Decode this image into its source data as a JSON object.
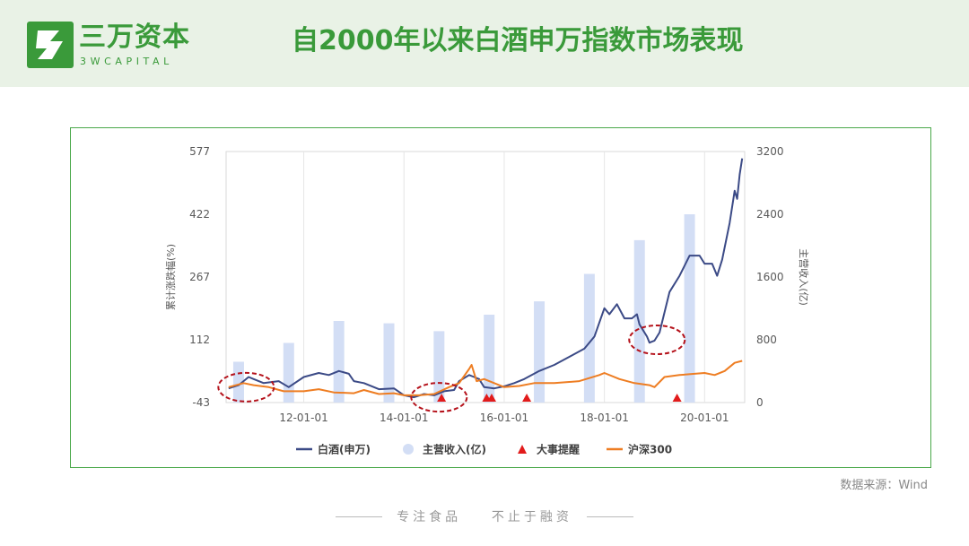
{
  "brand": {
    "name_cn": "三万资本",
    "name_en": "3WCAPITAL"
  },
  "title": "自2000年以来白酒申万指数市场表现",
  "source": "数据来源：Wind",
  "footer": {
    "left": "专注食品",
    "right": "不止于融资"
  },
  "colors": {
    "brand": "#3a9a3a",
    "baijiu": "#3b4a86",
    "hs300": "#ee7d22",
    "revenue": "#d3def5",
    "event": "#e21b1b",
    "highlight": "#b5121b"
  },
  "chart_data": {
    "type": "line",
    "ylabel_left": "累计涨跌幅(%)",
    "ylabel_right": "主营收入(亿)",
    "yticks_left": [
      "577",
      "422",
      "267",
      "112",
      "-43"
    ],
    "yticks_right": [
      "3200",
      "2400",
      "1600",
      "800",
      "0"
    ],
    "ylim_left": [
      -43,
      577
    ],
    "ylim_right": [
      0,
      3200
    ],
    "x_ticks": [
      "12-01-01",
      "14-01-01",
      "16-01-01",
      "18-01-01",
      "20-01-01"
    ],
    "x_tick_years": [
      2012,
      2014,
      2016,
      2018,
      2020
    ],
    "xlim": [
      2010.45,
      2020.8
    ],
    "grid": "vertical",
    "legend_position": "bottom",
    "legend": [
      "白酒(申万)",
      "主营收入(亿)",
      "大事提醒",
      "沪深300"
    ],
    "series": [
      {
        "name": "白酒(申万)",
        "kind": "line",
        "points": [
          [
            2010.5,
            -8
          ],
          [
            2010.7,
            0
          ],
          [
            2010.9,
            20
          ],
          [
            2011.0,
            15
          ],
          [
            2011.2,
            5
          ],
          [
            2011.5,
            10
          ],
          [
            2011.7,
            -5
          ],
          [
            2012.0,
            20
          ],
          [
            2012.3,
            30
          ],
          [
            2012.5,
            25
          ],
          [
            2012.7,
            35
          ],
          [
            2012.9,
            28
          ],
          [
            2013.0,
            10
          ],
          [
            2013.2,
            5
          ],
          [
            2013.5,
            -10
          ],
          [
            2013.8,
            -8
          ],
          [
            2014.0,
            -25
          ],
          [
            2014.2,
            -30
          ],
          [
            2014.4,
            -22
          ],
          [
            2014.6,
            -25
          ],
          [
            2014.8,
            -15
          ],
          [
            2015.0,
            -12
          ],
          [
            2015.1,
            10
          ],
          [
            2015.3,
            25
          ],
          [
            2015.4,
            20
          ],
          [
            2015.5,
            15
          ],
          [
            2015.6,
            -5
          ],
          [
            2015.8,
            -8
          ],
          [
            2016.0,
            -3
          ],
          [
            2016.2,
            5
          ],
          [
            2016.4,
            15
          ],
          [
            2016.7,
            35
          ],
          [
            2017.0,
            50
          ],
          [
            2017.3,
            70
          ],
          [
            2017.6,
            90
          ],
          [
            2017.8,
            120
          ],
          [
            2018.0,
            190
          ],
          [
            2018.1,
            175
          ],
          [
            2018.25,
            200
          ],
          [
            2018.4,
            165
          ],
          [
            2018.55,
            165
          ],
          [
            2018.65,
            175
          ],
          [
            2018.7,
            150
          ],
          [
            2018.85,
            120
          ],
          [
            2018.9,
            105
          ],
          [
            2019.0,
            110
          ],
          [
            2019.1,
            130
          ],
          [
            2019.3,
            230
          ],
          [
            2019.5,
            270
          ],
          [
            2019.7,
            320
          ],
          [
            2019.9,
            320
          ],
          [
            2020.0,
            300
          ],
          [
            2020.15,
            300
          ],
          [
            2020.25,
            270
          ],
          [
            2020.35,
            310
          ],
          [
            2020.5,
            400
          ],
          [
            2020.6,
            480
          ],
          [
            2020.65,
            460
          ],
          [
            2020.7,
            520
          ],
          [
            2020.75,
            560
          ]
        ]
      },
      {
        "name": "沪深300",
        "kind": "line",
        "points": [
          [
            2010.5,
            -5
          ],
          [
            2010.8,
            5
          ],
          [
            2011.0,
            0
          ],
          [
            2011.3,
            -5
          ],
          [
            2011.6,
            -15
          ],
          [
            2012.0,
            -15
          ],
          [
            2012.3,
            -10
          ],
          [
            2012.6,
            -18
          ],
          [
            2013.0,
            -20
          ],
          [
            2013.2,
            -12
          ],
          [
            2013.5,
            -22
          ],
          [
            2013.8,
            -20
          ],
          [
            2014.0,
            -25
          ],
          [
            2014.3,
            -25
          ],
          [
            2014.6,
            -22
          ],
          [
            2014.9,
            -5
          ],
          [
            2015.1,
            5
          ],
          [
            2015.3,
            40
          ],
          [
            2015.35,
            50
          ],
          [
            2015.45,
            10
          ],
          [
            2015.6,
            15
          ],
          [
            2015.8,
            5
          ],
          [
            2016.0,
            -5
          ],
          [
            2016.3,
            -2
          ],
          [
            2016.6,
            5
          ],
          [
            2017.0,
            5
          ],
          [
            2017.5,
            10
          ],
          [
            2017.9,
            25
          ],
          [
            2018.0,
            30
          ],
          [
            2018.3,
            15
          ],
          [
            2018.6,
            5
          ],
          [
            2018.9,
            0
          ],
          [
            2019.0,
            -5
          ],
          [
            2019.2,
            20
          ],
          [
            2019.5,
            25
          ],
          [
            2019.8,
            28
          ],
          [
            2020.0,
            30
          ],
          [
            2020.2,
            25
          ],
          [
            2020.4,
            35
          ],
          [
            2020.6,
            55
          ],
          [
            2020.75,
            60
          ]
        ]
      },
      {
        "name": "主营收入(亿)",
        "kind": "bar",
        "points": [
          [
            2010.7,
            520
          ],
          [
            2011.7,
            760
          ],
          [
            2012.7,
            1040
          ],
          [
            2013.7,
            1010
          ],
          [
            2014.7,
            910
          ],
          [
            2015.7,
            1120
          ],
          [
            2016.7,
            1290
          ],
          [
            2017.7,
            1640
          ],
          [
            2018.7,
            2070
          ],
          [
            2019.7,
            2400
          ]
        ]
      },
      {
        "name": "大事提醒",
        "kind": "marker",
        "points": [
          2014.75,
          2015.65,
          2015.75,
          2016.45,
          2019.45
        ]
      }
    ],
    "annotations": [
      {
        "kind": "ellipse",
        "x": 2010.85,
        "y": -5
      },
      {
        "kind": "ellipse",
        "x": 2014.7,
        "y": -30
      },
      {
        "kind": "ellipse",
        "x": 2019.05,
        "y": 112
      }
    ]
  }
}
